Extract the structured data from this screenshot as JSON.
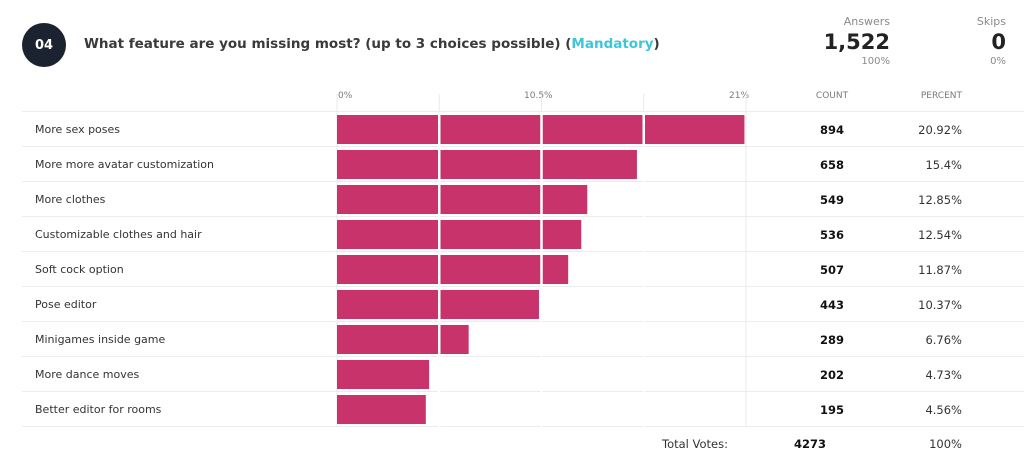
{
  "question": {
    "number": "04",
    "title": "What feature are you missing most? (up to 3 choices possible) (",
    "mandatory": "Mandatory",
    "title_end": ")"
  },
  "stats": {
    "answers_label": "Answers",
    "answers_value": "1,522",
    "answers_pct": "100%",
    "skips_label": "Skips",
    "skips_value": "0",
    "skips_pct": "0%"
  },
  "columns": {
    "count": "COUNT",
    "percent": "PERCENT"
  },
  "totals": {
    "label": "Total Votes:",
    "count": "4273",
    "percent": "100%"
  },
  "colors": {
    "bar": "#c9336b",
    "grid": "#ffffff",
    "badge": "#1b2230",
    "mandatory": "#3cc6d8"
  },
  "chart_data": {
    "type": "bar",
    "orientation": "horizontal",
    "x_ticks": [
      "0%",
      "10.5%",
      "21%"
    ],
    "xlim": [
      0,
      21
    ],
    "categories": [
      "More sex poses",
      "More more avatar customization",
      "More clothes",
      "Customizable clothes and hair",
      "Soft cock option",
      "Pose editor",
      "Minigames inside game",
      "More dance moves",
      "Better editor for rooms"
    ],
    "counts": [
      "894",
      "658",
      "549",
      "536",
      "507",
      "443",
      "289",
      "202",
      "195"
    ],
    "percent_labels": [
      "20.92%",
      "15.4%",
      "12.85%",
      "12.54%",
      "11.87%",
      "10.37%",
      "6.76%",
      "4.73%",
      "4.56%"
    ],
    "values": [
      20.92,
      15.4,
      12.85,
      12.54,
      11.87,
      10.37,
      6.76,
      4.73,
      4.56
    ]
  }
}
